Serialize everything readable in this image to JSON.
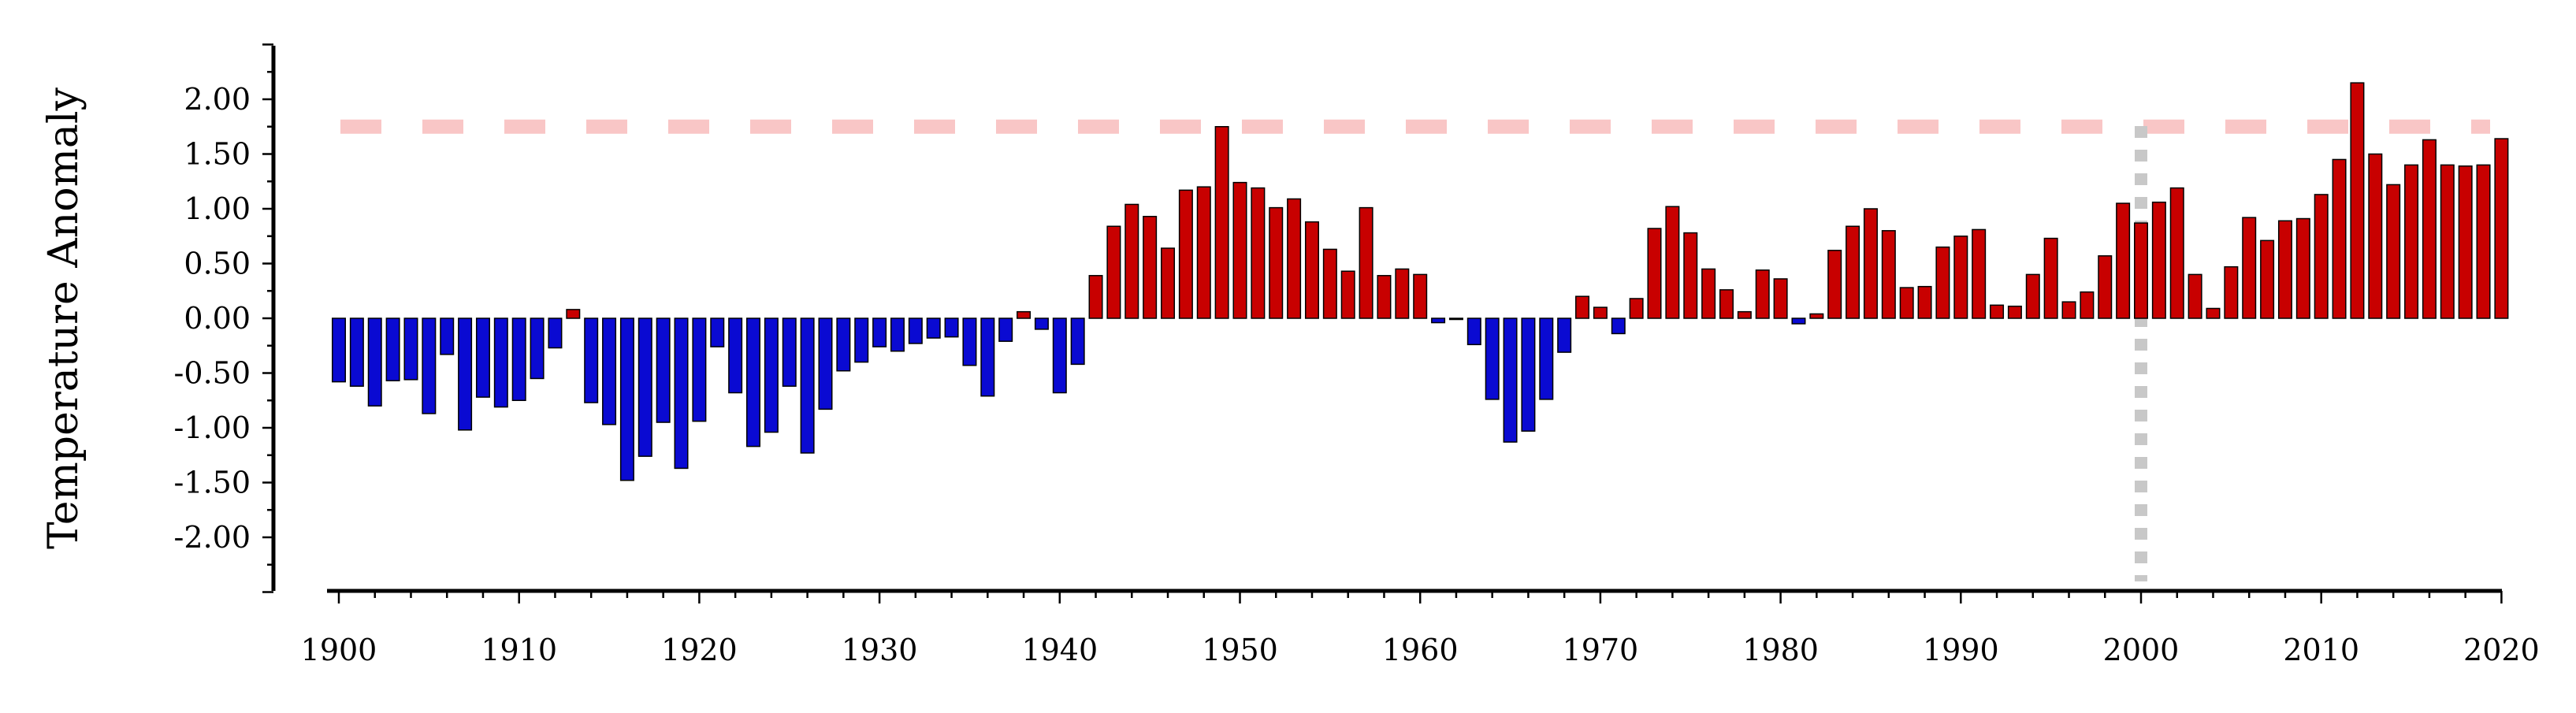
{
  "chart_data": {
    "type": "bar",
    "title": "",
    "xlabel": "",
    "ylabel": "Temperature Anomaly",
    "x_start": 1900,
    "values": [
      -0.58,
      -0.62,
      -0.8,
      -0.57,
      -0.56,
      -0.87,
      -0.33,
      -1.02,
      -0.72,
      -0.81,
      -0.75,
      -0.55,
      -0.27,
      0.08,
      -0.77,
      -0.97,
      -1.48,
      -1.26,
      -0.95,
      -1.37,
      -0.94,
      -0.26,
      -0.68,
      -1.17,
      -1.04,
      -0.62,
      -1.23,
      -0.83,
      -0.48,
      -0.4,
      -0.26,
      -0.3,
      -0.23,
      -0.18,
      -0.17,
      -0.43,
      -0.71,
      -0.21,
      0.06,
      -0.1,
      -0.68,
      -0.42,
      0.39,
      0.84,
      1.04,
      0.93,
      0.64,
      1.17,
      1.2,
      1.75,
      1.24,
      1.19,
      1.01,
      1.09,
      0.88,
      0.63,
      0.43,
      1.01,
      0.39,
      0.45,
      0.4,
      -0.04,
      -0.01,
      -0.24,
      -0.74,
      -1.13,
      -1.03,
      -0.74,
      -0.31,
      0.2,
      0.1,
      -0.14,
      0.18,
      0.82,
      1.02,
      0.78,
      0.45,
      0.26,
      0.06,
      0.44,
      0.36,
      -0.05,
      0.04,
      0.62,
      0.84,
      1.0,
      0.8,
      0.28,
      0.29,
      0.65,
      0.75,
      0.81,
      0.12,
      0.11,
      0.4,
      0.73,
      0.15,
      0.24,
      0.57,
      1.05,
      0.87,
      1.06,
      1.19,
      0.4,
      0.09,
      0.47,
      0.92,
      0.71,
      0.89,
      0.91,
      1.13,
      1.45,
      2.15,
      1.5,
      1.22,
      1.4,
      1.63,
      1.4,
      1.39,
      1.4,
      1.64
    ],
    "ylim": [
      -2.5,
      2.5
    ],
    "yticks": [
      "2.00",
      "1.50",
      "1.00",
      "0.50",
      "0.00",
      "-0.50",
      "-1.00",
      "-1.50",
      "-2.00"
    ],
    "xticks": [
      "1900",
      "1910",
      "1920",
      "1930",
      "1940",
      "1950",
      "1960",
      "1970",
      "1980",
      "1990",
      "2000",
      "2010",
      "2020"
    ],
    "reference_lines": [
      {
        "orientation": "horizontal",
        "value": 1.75,
        "style": "dashed",
        "color": "#f9c6c6"
      },
      {
        "orientation": "vertical",
        "value": 2000,
        "style": "dotted",
        "color": "#c8c8c8"
      }
    ],
    "colors": {
      "positive": "#c80000",
      "negative": "#0a0ad2",
      "edge": "#000000"
    },
    "grid": false,
    "legend": "none"
  }
}
